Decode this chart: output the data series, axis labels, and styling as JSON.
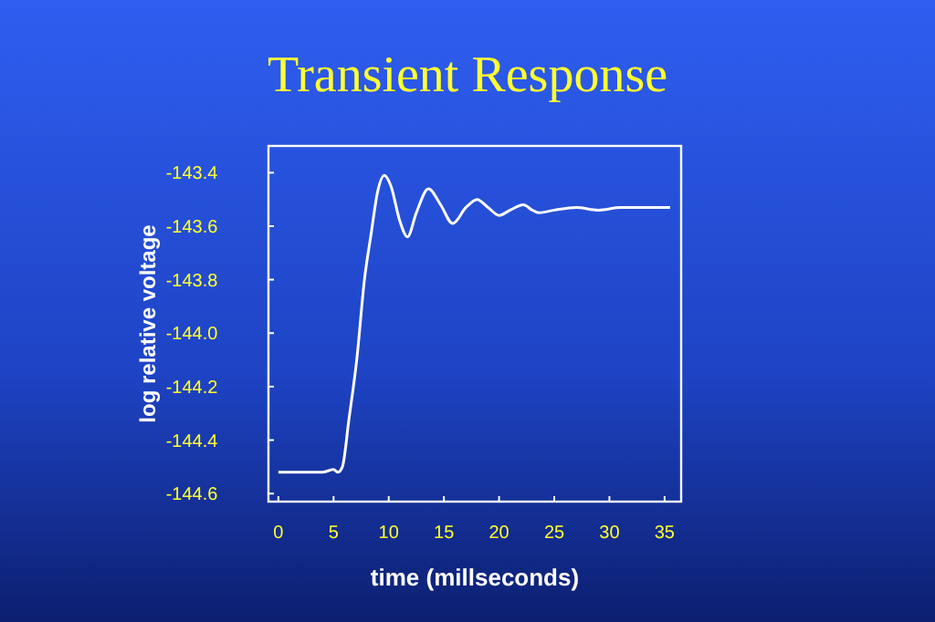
{
  "chart_data": {
    "type": "line",
    "title": "Transient Response",
    "xlabel": "time (millseconds)",
    "ylabel": "log relative voltage",
    "x": [
      0,
      2,
      4,
      5,
      5.4,
      5.8,
      6.4,
      7.1,
      7.8,
      8.4,
      9,
      9.6,
      10.2,
      11,
      11.7,
      12.5,
      13.6,
      14.7,
      15.8,
      17,
      18,
      19,
      20,
      21,
      22.2,
      23,
      23.6,
      25,
      27,
      29,
      31,
      33,
      35.5
    ],
    "series": [
      {
        "color": "#ffffff",
        "values": [
          -144.52,
          -144.52,
          -144.52,
          -144.51,
          -144.52,
          -144.5,
          -144.32,
          -144.1,
          -143.8,
          -143.63,
          -143.47,
          -143.41,
          -143.45,
          -143.58,
          -143.64,
          -143.55,
          -143.46,
          -143.52,
          -143.59,
          -143.53,
          -143.5,
          -143.53,
          -143.56,
          -143.54,
          -143.52,
          -143.54,
          -143.55,
          -143.54,
          -143.53,
          -143.54,
          -143.53,
          -143.53,
          -143.53
        ]
      }
    ],
    "xlim": [
      -0.9,
      36.5
    ],
    "ylim": [
      -144.63,
      -143.3
    ],
    "xticks": [
      0,
      5,
      10,
      15,
      20,
      25,
      30,
      35
    ],
    "yticks": [
      {
        "value": -143.4,
        "label": "-143.4"
      },
      {
        "value": -143.6,
        "label": "-143.6"
      },
      {
        "value": -143.8,
        "label": "-143.8"
      },
      {
        "value": -144.0,
        "label": "-144.0"
      },
      {
        "value": -144.2,
        "label": "-144.2"
      },
      {
        "value": -144.4,
        "label": "-144.4"
      },
      {
        "value": -144.6,
        "label": "-144.6"
      }
    ],
    "marker": "none",
    "line_style": "solid"
  }
}
